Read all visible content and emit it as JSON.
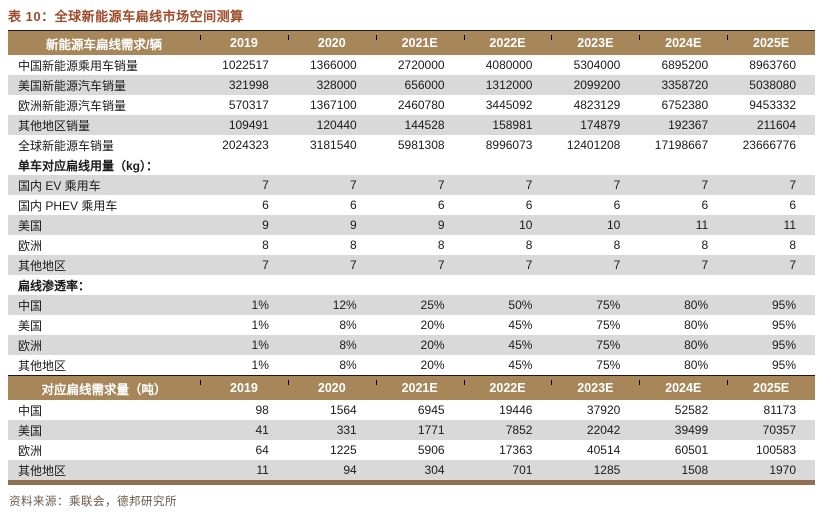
{
  "title": "表 10：全球新能源车扁线市场空间测算",
  "footer": "资料来源：乘联会，德邦研究所",
  "colors": {
    "header_bg": "#A7865A",
    "header_text": "#FFFFFF",
    "row_alt_bg": "#D9D9D9",
    "title_color": "#9E4B2A",
    "footer_color": "#6B584A",
    "bottom_bar": "#8F7050",
    "body_text": "#1A1A1A"
  },
  "table": {
    "years": [
      "2019",
      "2020",
      "2021E",
      "2022E",
      "2023E",
      "2024E",
      "2025E"
    ],
    "rows": [
      {
        "type": "header",
        "label": "新能源车扁线需求/辆"
      },
      {
        "type": "data",
        "label": "中国新能源乘用车销量",
        "shaded": false,
        "cells": [
          "1022517",
          "1366000",
          "2720000",
          "4080000",
          "5304000",
          "6895200",
          "8963760"
        ]
      },
      {
        "type": "data",
        "label": "美国新能源汽车销量",
        "shaded": true,
        "cells": [
          "321998",
          "328000",
          "656000",
          "1312000",
          "2099200",
          "3358720",
          "5038080"
        ]
      },
      {
        "type": "data",
        "label": "欧洲新能源汽车销量",
        "shaded": false,
        "cells": [
          "570317",
          "1367100",
          "2460780",
          "3445092",
          "4823129",
          "6752380",
          "9453332"
        ]
      },
      {
        "type": "data",
        "label": "其他地区销量",
        "shaded": true,
        "cells": [
          "109491",
          "120440",
          "144528",
          "158981",
          "174879",
          "192367",
          "211604"
        ]
      },
      {
        "type": "data",
        "label": "全球新能源车销量",
        "shaded": false,
        "cells": [
          "2024323",
          "3181540",
          "5981308",
          "8996073",
          "12401208",
          "17198667",
          "23666776"
        ]
      },
      {
        "type": "subheader",
        "label": "单车对应扁线用量（kg）："
      },
      {
        "type": "data",
        "label": "国内 EV 乘用车",
        "shaded": true,
        "cells": [
          "7",
          "7",
          "7",
          "7",
          "7",
          "7",
          "7"
        ]
      },
      {
        "type": "data",
        "label": "国内 PHEV 乘用车",
        "shaded": false,
        "cells": [
          "6",
          "6",
          "6",
          "6",
          "6",
          "6",
          "6"
        ]
      },
      {
        "type": "data",
        "label": "美国",
        "shaded": true,
        "cells": [
          "9",
          "9",
          "9",
          "10",
          "10",
          "11",
          "11"
        ]
      },
      {
        "type": "data",
        "label": "欧洲",
        "shaded": false,
        "cells": [
          "8",
          "8",
          "8",
          "8",
          "8",
          "8",
          "8"
        ]
      },
      {
        "type": "data",
        "label": "其他地区",
        "shaded": true,
        "cells": [
          "7",
          "7",
          "7",
          "7",
          "7",
          "7",
          "7"
        ]
      },
      {
        "type": "subheader",
        "label": "扁线渗透率："
      },
      {
        "type": "data",
        "label": "中国",
        "shaded": true,
        "cells": [
          "1%",
          "12%",
          "25%",
          "50%",
          "75%",
          "80%",
          "95%"
        ]
      },
      {
        "type": "data",
        "label": "美国",
        "shaded": false,
        "cells": [
          "1%",
          "8%",
          "20%",
          "45%",
          "75%",
          "80%",
          "95%"
        ]
      },
      {
        "type": "data",
        "label": "欧洲",
        "shaded": true,
        "cells": [
          "1%",
          "8%",
          "20%",
          "45%",
          "75%",
          "80%",
          "95%"
        ]
      },
      {
        "type": "data",
        "label": "其他地区",
        "shaded": false,
        "cells": [
          "1%",
          "8%",
          "20%",
          "45%",
          "75%",
          "80%",
          "95%"
        ]
      },
      {
        "type": "header",
        "label": "对应扁线需求量（吨）"
      },
      {
        "type": "data",
        "label": "中国",
        "shaded": false,
        "cells": [
          "98",
          "1564",
          "6945",
          "19446",
          "37920",
          "52582",
          "81173"
        ]
      },
      {
        "type": "data",
        "label": "美国",
        "shaded": true,
        "cells": [
          "41",
          "331",
          "1771",
          "7852",
          "22042",
          "39499",
          "70357"
        ]
      },
      {
        "type": "data",
        "label": "欧洲",
        "shaded": false,
        "cells": [
          "64",
          "1225",
          "5906",
          "17363",
          "40514",
          "60501",
          "100583"
        ]
      },
      {
        "type": "data",
        "label": "其他地区",
        "shaded": true,
        "cells": [
          "11",
          "94",
          "304",
          "701",
          "1285",
          "1508",
          "1970"
        ]
      }
    ]
  }
}
